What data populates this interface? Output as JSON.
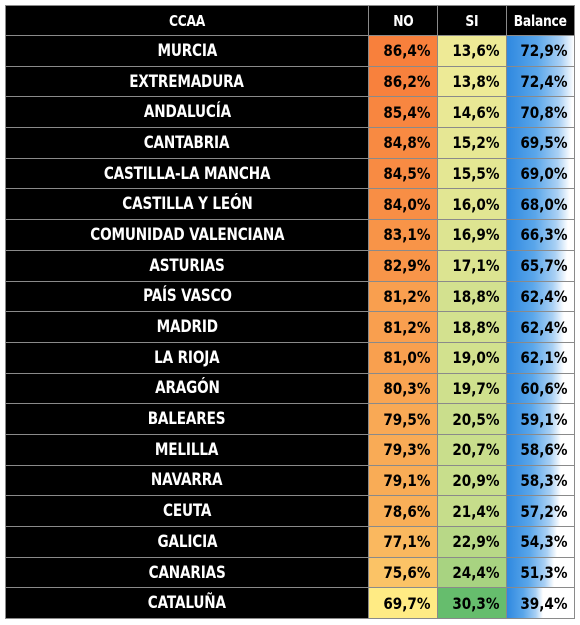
{
  "chart_data": {
    "type": "table",
    "columns": [
      "CCAA",
      "NO",
      "SI",
      "Balance"
    ],
    "rows": [
      {
        "ccaa": "MURCIA",
        "no": "86,4%",
        "si": "13,6%",
        "balance": "72,9%",
        "no_v": 86.4,
        "si_v": 13.6,
        "bal_v": 72.9
      },
      {
        "ccaa": "EXTREMADURA",
        "no": "86,2%",
        "si": "13,8%",
        "balance": "72,4%",
        "no_v": 86.2,
        "si_v": 13.8,
        "bal_v": 72.4
      },
      {
        "ccaa": "ANDALUCÍA",
        "no": "85,4%",
        "si": "14,6%",
        "balance": "70,8%",
        "no_v": 85.4,
        "si_v": 14.6,
        "bal_v": 70.8
      },
      {
        "ccaa": "CANTABRIA",
        "no": "84,8%",
        "si": "15,2%",
        "balance": "69,5%",
        "no_v": 84.8,
        "si_v": 15.2,
        "bal_v": 69.5
      },
      {
        "ccaa": "CASTILLA-LA MANCHA",
        "no": "84,5%",
        "si": "15,5%",
        "balance": "69,0%",
        "no_v": 84.5,
        "si_v": 15.5,
        "bal_v": 69.0
      },
      {
        "ccaa": "CASTILLA Y LEÓN",
        "no": "84,0%",
        "si": "16,0%",
        "balance": "68,0%",
        "no_v": 84.0,
        "si_v": 16.0,
        "bal_v": 68.0
      },
      {
        "ccaa": "COMUNIDAD VALENCIANA",
        "no": "83,1%",
        "si": "16,9%",
        "balance": "66,3%",
        "no_v": 83.1,
        "si_v": 16.9,
        "bal_v": 66.3
      },
      {
        "ccaa": "ASTURIAS",
        "no": "82,9%",
        "si": "17,1%",
        "balance": "65,7%",
        "no_v": 82.9,
        "si_v": 17.1,
        "bal_v": 65.7
      },
      {
        "ccaa": "PAÍS VASCO",
        "no": "81,2%",
        "si": "18,8%",
        "balance": "62,4%",
        "no_v": 81.2,
        "si_v": 18.8,
        "bal_v": 62.4
      },
      {
        "ccaa": "MADRID",
        "no": "81,2%",
        "si": "18,8%",
        "balance": "62,4%",
        "no_v": 81.2,
        "si_v": 18.8,
        "bal_v": 62.4
      },
      {
        "ccaa": "LA RIOJA",
        "no": "81,0%",
        "si": "19,0%",
        "balance": "62,1%",
        "no_v": 81.0,
        "si_v": 19.0,
        "bal_v": 62.1
      },
      {
        "ccaa": "ARAGÓN",
        "no": "80,3%",
        "si": "19,7%",
        "balance": "60,6%",
        "no_v": 80.3,
        "si_v": 19.7,
        "bal_v": 60.6
      },
      {
        "ccaa": "BALEARES",
        "no": "79,5%",
        "si": "20,5%",
        "balance": "59,1%",
        "no_v": 79.5,
        "si_v": 20.5,
        "bal_v": 59.1
      },
      {
        "ccaa": "MELILLA",
        "no": "79,3%",
        "si": "20,7%",
        "balance": "58,6%",
        "no_v": 79.3,
        "si_v": 20.7,
        "bal_v": 58.6
      },
      {
        "ccaa": "NAVARRA",
        "no": "79,1%",
        "si": "20,9%",
        "balance": "58,3%",
        "no_v": 79.1,
        "si_v": 20.9,
        "bal_v": 58.3
      },
      {
        "ccaa": "CEUTA",
        "no": "78,6%",
        "si": "21,4%",
        "balance": "57,2%",
        "no_v": 78.6,
        "si_v": 21.4,
        "bal_v": 57.2
      },
      {
        "ccaa": "GALICIA",
        "no": "77,1%",
        "si": "22,9%",
        "balance": "54,3%",
        "no_v": 77.1,
        "si_v": 22.9,
        "bal_v": 54.3
      },
      {
        "ccaa": "CANARIAS",
        "no": "75,6%",
        "si": "24,4%",
        "balance": "51,3%",
        "no_v": 75.6,
        "si_v": 24.4,
        "bal_v": 51.3
      },
      {
        "ccaa": "CATALUÑA",
        "no": "69,7%",
        "si": "30,3%",
        "balance": "39,4%",
        "no_v": 69.7,
        "si_v": 30.3,
        "bal_v": 39.4
      }
    ],
    "colors": {
      "header_bg": "#000000",
      "name_bg": "#000000",
      "text_light": "#ffffff",
      "scale_high": "#f8696b",
      "scale_orange": "#f98b40",
      "scale_mid": "#ffeb84",
      "scale_low": "#63be7b",
      "databar": "#2f89e0"
    }
  }
}
